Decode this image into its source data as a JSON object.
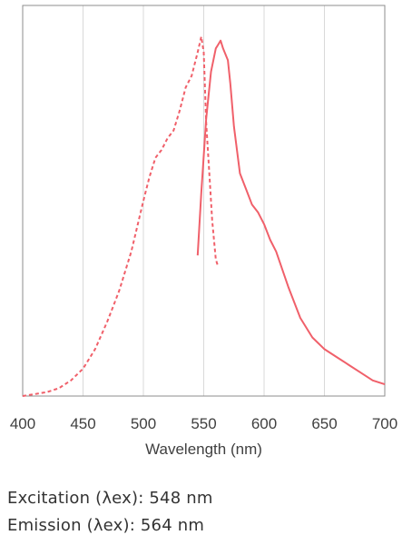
{
  "chart_data": {
    "type": "line",
    "title": "",
    "xlabel": "Wavelength (nm)",
    "ylabel": "",
    "xlim": [
      400,
      700
    ],
    "ylim": [
      0,
      1
    ],
    "xticks": [
      "400",
      "450",
      "500",
      "550",
      "600",
      "650",
      "700"
    ],
    "grid": "vertical",
    "colors": {
      "series": "#f0606a",
      "grid": "#d9d9d9",
      "frame": "#8c8c8c"
    },
    "series": [
      {
        "name": "Excitation",
        "style": "dashed",
        "x": [
          400,
          410,
          420,
          430,
          440,
          450,
          460,
          470,
          475,
          480,
          490,
          500,
          505,
          510,
          515,
          520,
          525,
          530,
          535,
          540,
          545,
          548,
          550,
          552,
          555,
          557,
          560,
          562
        ],
        "y": [
          0.0,
          0.005,
          0.01,
          0.02,
          0.04,
          0.07,
          0.12,
          0.19,
          0.23,
          0.27,
          0.37,
          0.5,
          0.56,
          0.61,
          0.63,
          0.66,
          0.68,
          0.73,
          0.79,
          0.82,
          0.88,
          0.92,
          0.88,
          0.7,
          0.55,
          0.45,
          0.35,
          0.33
        ]
      },
      {
        "name": "Emission",
        "style": "solid",
        "x": [
          545,
          548,
          552,
          556,
          560,
          562,
          564,
          566,
          570,
          572,
          575,
          580,
          585,
          590,
          595,
          600,
          605,
          610,
          620,
          630,
          640,
          650,
          660,
          670,
          680,
          690,
          700
        ],
        "y": [
          0.36,
          0.52,
          0.71,
          0.83,
          0.89,
          0.9,
          0.91,
          0.89,
          0.86,
          0.8,
          0.69,
          0.57,
          0.53,
          0.49,
          0.47,
          0.44,
          0.4,
          0.37,
          0.28,
          0.2,
          0.15,
          0.12,
          0.1,
          0.08,
          0.06,
          0.04,
          0.03
        ]
      }
    ]
  },
  "legend": {
    "excitation": "Excitation (λex): 548 nm",
    "emission": "Emission (λex): 564 nm"
  }
}
